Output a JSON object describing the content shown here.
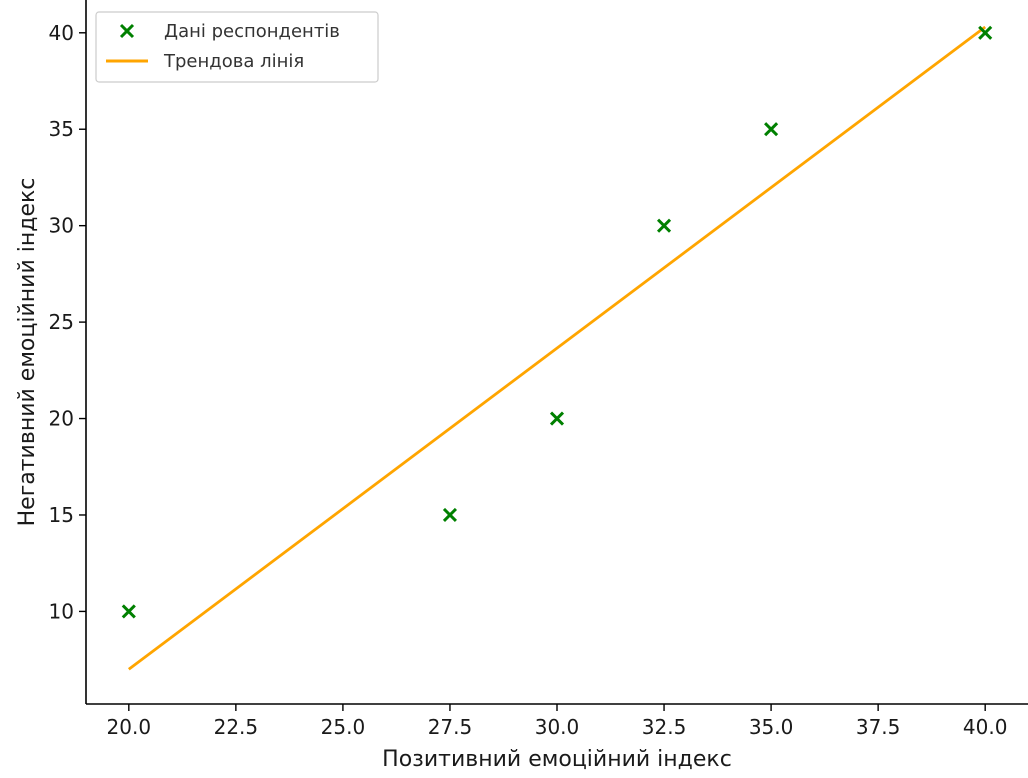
{
  "chart_data": {
    "type": "scatter",
    "title": "",
    "xlabel": "Позитивний емоційний індекс",
    "ylabel": "Негативний емоційний індекс",
    "xlim": [
      19.0,
      41.0
    ],
    "ylim": [
      5.2,
      41.7
    ],
    "x_ticks": [
      "20.0",
      "22.5",
      "25.0",
      "27.5",
      "30.0",
      "32.5",
      "35.0",
      "37.5",
      "40.0"
    ],
    "y_ticks": [
      "10",
      "15",
      "20",
      "25",
      "30",
      "35",
      "40"
    ],
    "x_tick_values": [
      20.0,
      22.5,
      25.0,
      27.5,
      30.0,
      32.5,
      35.0,
      37.5,
      40.0
    ],
    "y_tick_values": [
      10,
      15,
      20,
      25,
      30,
      35,
      40
    ],
    "grid": false,
    "legend_position": "top-left",
    "series": [
      {
        "name": "Дані респондентів",
        "kind": "scatter",
        "marker": "x",
        "color": "#008000",
        "x": [
          20.0,
          27.5,
          30.0,
          32.5,
          35.0,
          40.0
        ],
        "y": [
          10,
          15,
          20,
          30,
          35,
          40
        ]
      },
      {
        "name": "Трендова лінія",
        "kind": "line",
        "color": "#FFA500",
        "x": [
          20.0,
          40.0
        ],
        "y": [
          7.0,
          40.3
        ]
      }
    ]
  }
}
